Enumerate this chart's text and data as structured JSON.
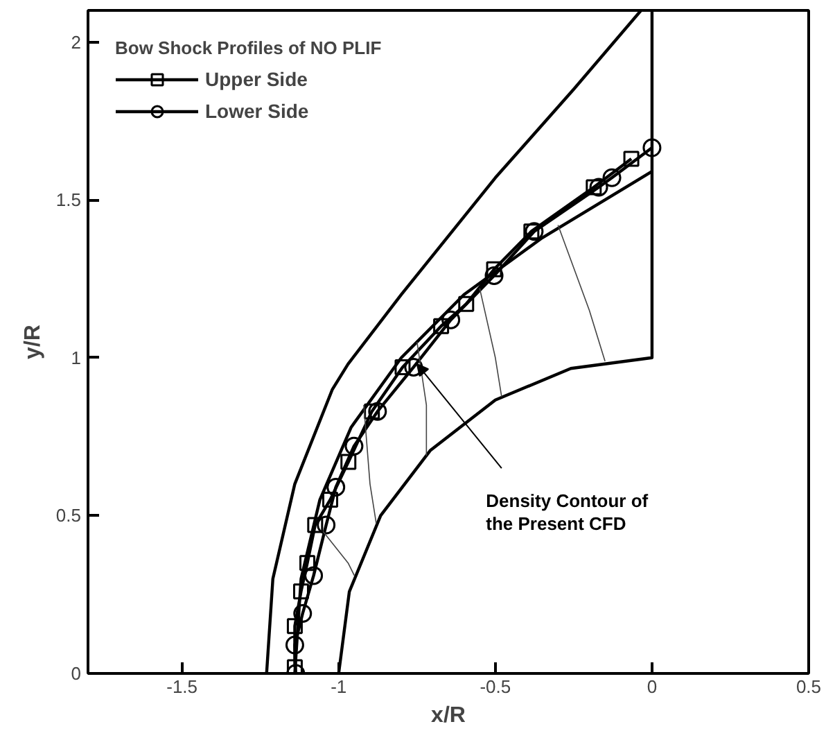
{
  "chart_data": {
    "type": "line",
    "xlabel": "x/R",
    "ylabel": "y/R",
    "legend_title": "Bow Shock Profiles of NO PLIF",
    "legend": "top left",
    "grid": false,
    "xlim": [
      -1.8,
      0.5
    ],
    "ylim": [
      0,
      2.1
    ],
    "xticks": [
      -1.5,
      -1,
      -0.5,
      0,
      0.5
    ],
    "yticks": [
      0,
      0.5,
      1,
      1.5,
      2
    ],
    "series": [
      {
        "name": "Upper Side",
        "color": "#000000",
        "marker": "square",
        "x": [
          -0.066,
          -0.186,
          -0.385,
          -0.504,
          -0.593,
          -0.673,
          -0.796,
          -0.894,
          -0.969,
          -1.027,
          -1.075,
          -1.1,
          -1.12,
          -1.14,
          -1.14
        ],
        "values": [
          1.63,
          1.54,
          1.4,
          1.28,
          1.17,
          1.1,
          0.97,
          0.83,
          0.67,
          0.55,
          0.47,
          0.35,
          0.26,
          0.15,
          0.02
        ]
      },
      {
        "name": "Lower Side",
        "color": "#000000",
        "marker": "circle",
        "x": [
          0,
          -0.128,
          -0.17,
          -0.376,
          -0.504,
          -0.642,
          -0.761,
          -0.876,
          -0.951,
          -1.009,
          -1.04,
          -1.08,
          -1.115,
          -1.14,
          -1.137
        ],
        "values": [
          1.665,
          1.57,
          1.54,
          1.4,
          1.26,
          1.12,
          0.97,
          0.83,
          0.72,
          0.59,
          0.47,
          0.31,
          0.19,
          0.09,
          0.0
        ]
      },
      {
        "color": "#000000",
        "marker": "none",
        "x": [
          -1.14,
          -1.12,
          -1.06,
          -0.96,
          -0.8,
          -0.6,
          -0.35,
          0
        ],
        "values": [
          0,
          0.3,
          0.55,
          0.78,
          1.0,
          1.2,
          1.38,
          1.59
        ]
      },
      {
        "color": "#000000",
        "marker": "none",
        "x": [
          -1.23,
          -1.21,
          -1.14,
          -1.02,
          -0.97,
          -0.8,
          -0.5,
          -0.25,
          -0.035
        ],
        "values": [
          0,
          0.3,
          0.6,
          0.9,
          0.98,
          1.2,
          1.57,
          1.85,
          2.1
        ]
      },
      {
        "color": "#000000",
        "marker": "none",
        "x": [
          -1,
          -0.966,
          -0.866,
          -0.707,
          -0.5,
          -0.259,
          0,
          0,
          0
        ],
        "values": [
          0,
          0.259,
          0.5,
          0.707,
          0.866,
          0.966,
          1,
          1.59,
          2.1
        ]
      },
      {
        "color": "#444444",
        "marker": "none",
        "x": [
          -1.05,
          -0.97,
          -0.95
        ],
        "values": [
          0.45,
          0.35,
          0.31
        ]
      },
      {
        "color": "#444444",
        "marker": "none",
        "x": [
          -0.92,
          -0.9,
          -0.88
        ],
        "values": [
          0.85,
          0.6,
          0.475
        ]
      },
      {
        "color": "#444444",
        "marker": "none",
        "x": [
          -0.75,
          -0.72,
          -0.72
        ],
        "values": [
          1.05,
          0.85,
          0.69
        ]
      },
      {
        "color": "#444444",
        "marker": "none",
        "x": [
          -0.55,
          -0.5,
          -0.48
        ],
        "values": [
          1.22,
          1.0,
          0.877
        ]
      },
      {
        "color": "#444444",
        "marker": "none",
        "x": [
          -0.3,
          -0.2,
          -0.15
        ],
        "values": [
          1.42,
          1.15,
          0.989
        ]
      }
    ],
    "annotations": [
      {
        "text": "Density Contour of\nthe Present CFD",
        "x": -0.75,
        "y": 0.98
      }
    ]
  }
}
